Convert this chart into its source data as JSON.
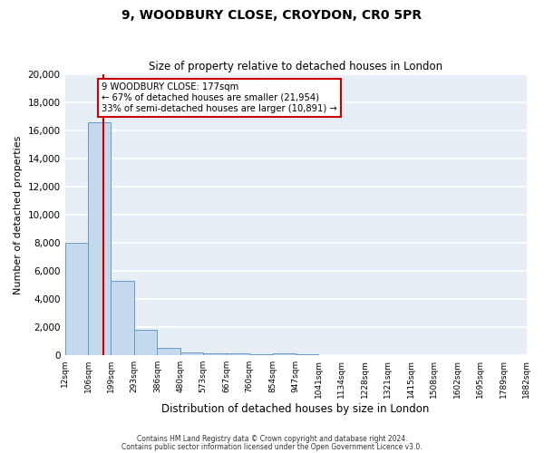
{
  "title1": "9, WOODBURY CLOSE, CROYDON, CR0 5PR",
  "title2": "Size of property relative to detached houses in London",
  "xlabel": "Distribution of detached houses by size in London",
  "ylabel": "Number of detached properties",
  "bar_values": [
    8000,
    16600,
    5300,
    1800,
    500,
    200,
    150,
    100,
    50,
    100,
    50,
    0,
    0,
    0,
    0,
    0,
    0,
    0,
    0,
    0
  ],
  "bin_labels": [
    "12sqm",
    "106sqm",
    "199sqm",
    "293sqm",
    "386sqm",
    "480sqm",
    "573sqm",
    "667sqm",
    "760sqm",
    "854sqm",
    "947sqm",
    "1041sqm",
    "1134sqm",
    "1228sqm",
    "1321sqm",
    "1415sqm",
    "1508sqm",
    "1602sqm",
    "1695sqm",
    "1789sqm",
    "1882sqm"
  ],
  "bar_color": "#c5d9ec",
  "bar_edge_color": "#6699cc",
  "background_color": "#e8eef5",
  "grid_color": "#ffffff",
  "ylim": [
    0,
    20000
  ],
  "yticks": [
    0,
    2000,
    4000,
    6000,
    8000,
    10000,
    12000,
    14000,
    16000,
    18000,
    20000
  ],
  "property_line_x": 1.68,
  "annotation_title": "9 WOODBURY CLOSE: 177sqm",
  "annotation_line1": "← 67% of detached houses are smaller (21,954)",
  "annotation_line2": "33% of semi-detached houses are larger (10,891) →",
  "red_line_color": "#cc0000",
  "annotation_box_color": "#ffffff",
  "annotation_box_edge": "#cc0000",
  "footer1": "Contains HM Land Registry data © Crown copyright and database right 2024.",
  "footer2": "Contains public sector information licensed under the Open Government Licence v3.0."
}
